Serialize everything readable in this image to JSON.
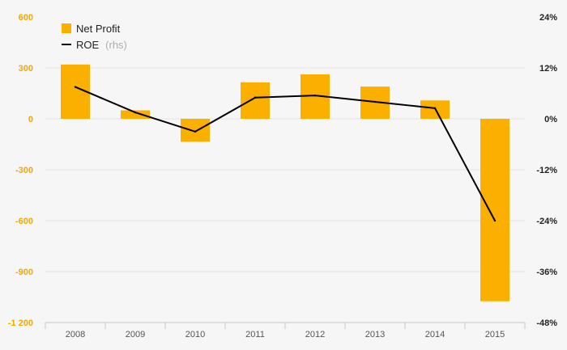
{
  "chart_data": {
    "type": "bar",
    "categories": [
      "2008",
      "2009",
      "2010",
      "2011",
      "2012",
      "2013",
      "2014",
      "2015"
    ],
    "series": [
      {
        "name": "Net Profit",
        "type": "bar",
        "axis": "left",
        "color": "#FBB000",
        "values": [
          320,
          50,
          -135,
          215,
          262,
          190,
          108,
          -1075
        ]
      },
      {
        "name": "ROE",
        "name_suffix": "(rhs)",
        "type": "line",
        "axis": "right",
        "color": "#000000",
        "values": [
          7.5,
          1.5,
          -3.0,
          5.0,
          5.5,
          4.0,
          2.5,
          -24.0
        ]
      }
    ],
    "y_left": {
      "ylim": [
        -1200,
        600
      ],
      "ticks": [
        "600",
        "300",
        "0",
        "-300",
        "-600",
        "-900",
        "-1 200"
      ],
      "tick_values": [
        600,
        300,
        0,
        -300,
        -600,
        -900,
        -1200
      ]
    },
    "y_right": {
      "ylim": [
        -48,
        24
      ],
      "ticks": [
        "24%",
        "12%",
        "0%",
        "-12%",
        "-24%",
        "-36%",
        "-48%"
      ],
      "tick_values": [
        24,
        12,
        0,
        -12,
        -24,
        -36,
        -48
      ]
    },
    "title": "",
    "xlabel": "",
    "ylabel": "",
    "grid": true,
    "legend": "top-left"
  }
}
